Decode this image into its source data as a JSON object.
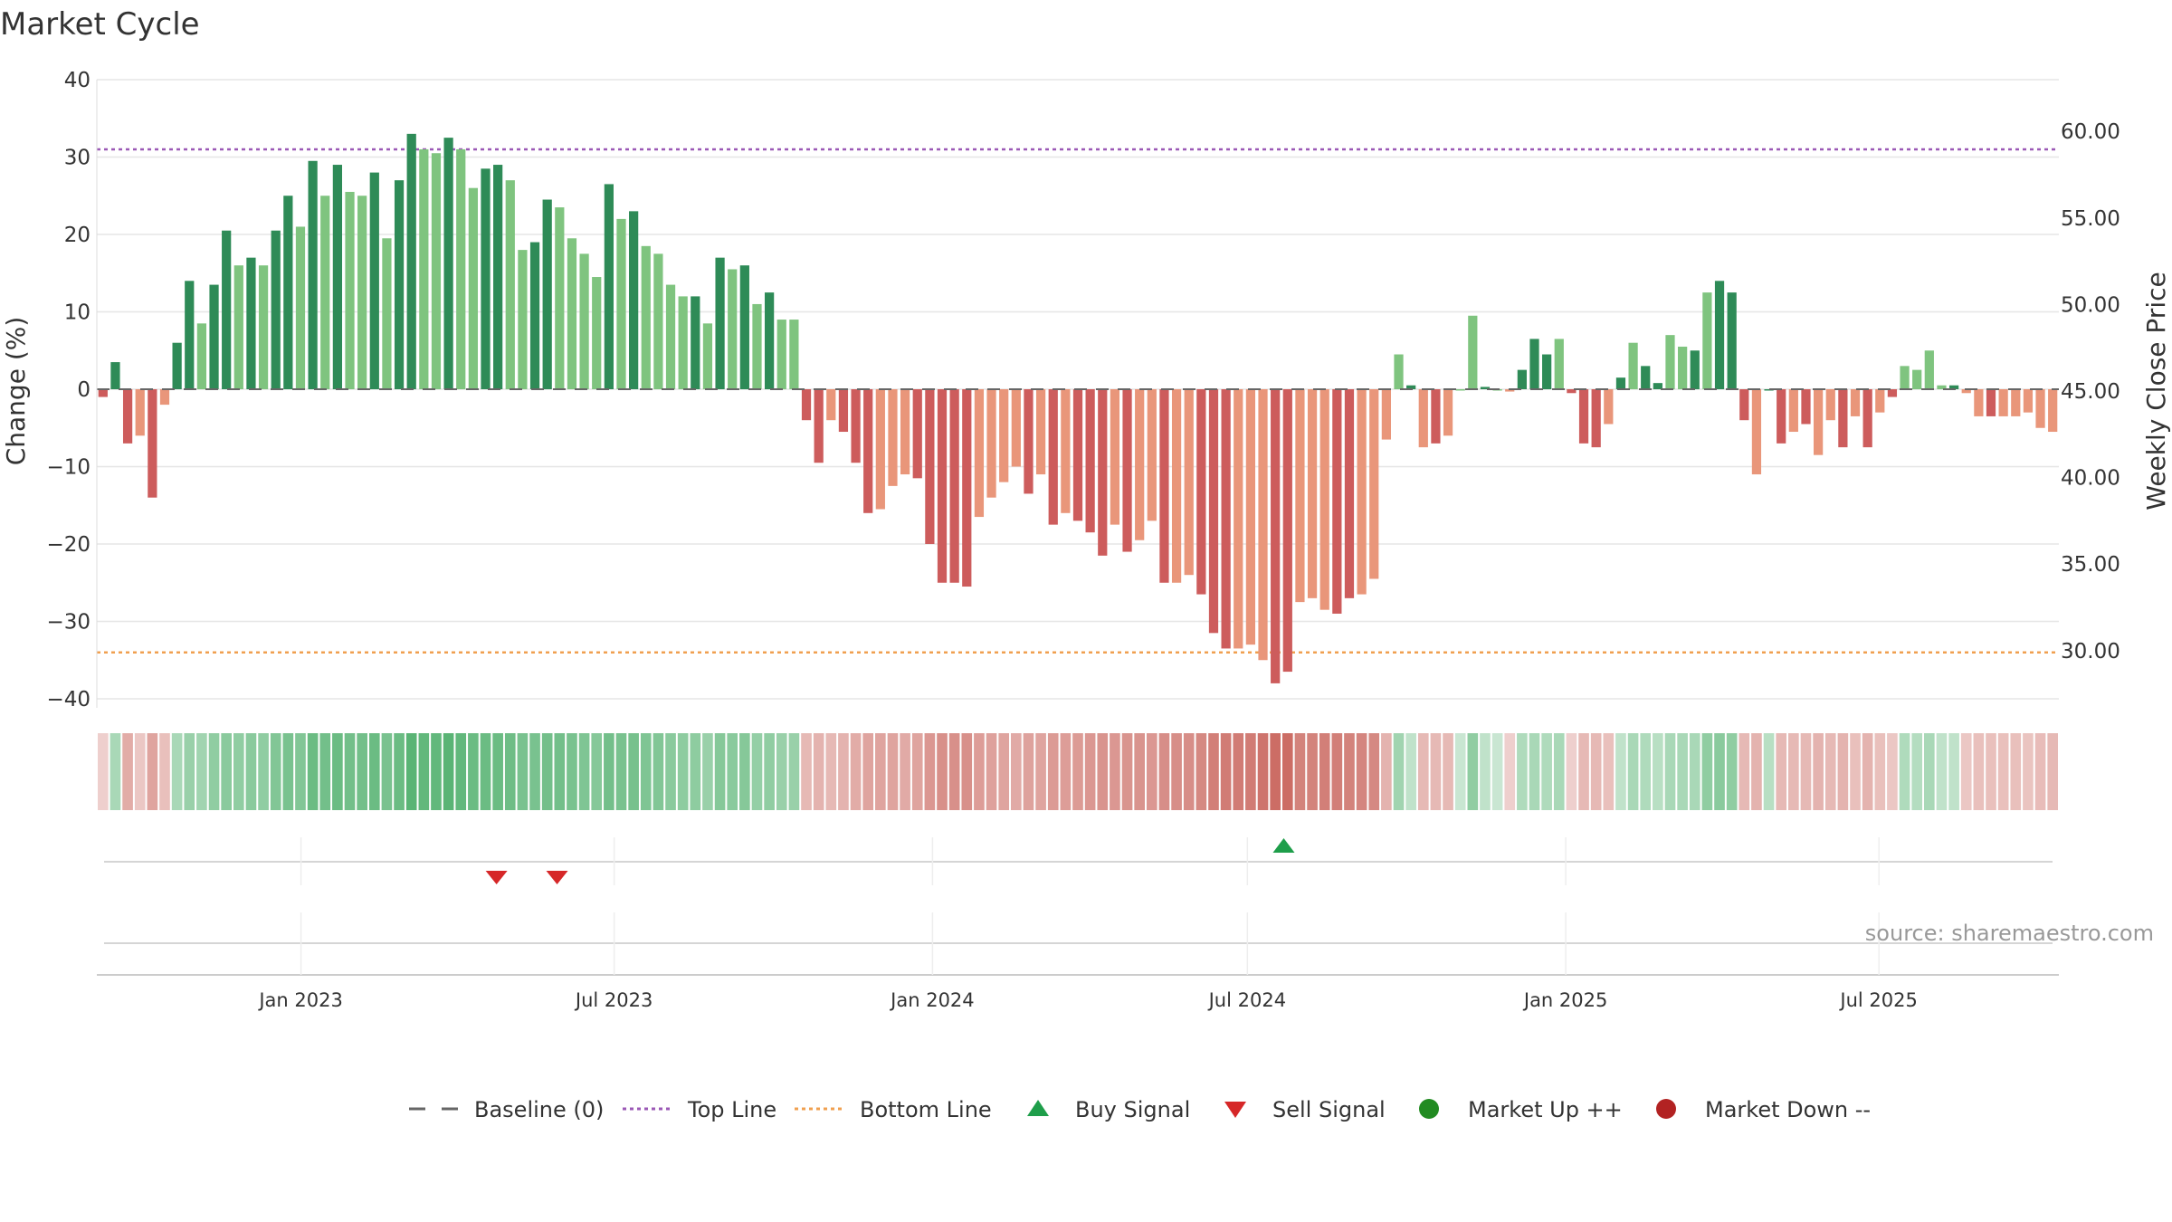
{
  "title": "Market Cycle",
  "source_text": "source: sharemaestro.com",
  "colors": {
    "strong_up": "#2e8b57",
    "weak_up": "#7fc47f",
    "strong_down": "#cd5c5c",
    "weak_down": "#e9967a",
    "top_line": "#9b59b6",
    "bottom_line": "#f0a050",
    "baseline": "#666666",
    "buy": "#1e9e4a",
    "sell": "#d62728",
    "market_up": "#228b22",
    "market_down": "#b22222"
  },
  "legend": [
    {
      "label": "Baseline (0)",
      "icon": "dash"
    },
    {
      "label": "Top Line",
      "icon": "dot-purple"
    },
    {
      "label": "Bottom Line",
      "icon": "dot-orange"
    },
    {
      "label": "Buy Signal",
      "icon": "triangle-up"
    },
    {
      "label": "Sell Signal",
      "icon": "triangle-down"
    },
    {
      "label": "Market Up ++",
      "icon": "circle-green"
    },
    {
      "label": "Market Down --",
      "icon": "circle-red"
    }
  ],
  "chart_data": {
    "type": "bar",
    "title": "Market Cycle",
    "ylabel": "Change (%)",
    "y2label": "Weekly Close Price",
    "ylim": [
      -40,
      40
    ],
    "yticks": [
      40,
      30,
      20,
      10,
      0,
      -10,
      -20,
      -30,
      -40
    ],
    "ytick_labels": [
      "40",
      "30",
      "20",
      "10",
      "0",
      "−10",
      "−20",
      "−30",
      "−40"
    ],
    "y2ticks": [
      60,
      55,
      50,
      45,
      40,
      35,
      30
    ],
    "y2tick_labels": [
      "60.00",
      "55.00",
      "50.00",
      "45.00",
      "40.00",
      "35.00",
      "30.00"
    ],
    "x_start": "2022-09-05",
    "x_end": "2025-10-13",
    "xtick_labels": [
      "Jan 2023",
      "Jul 2023",
      "Jan 2024",
      "Jul 2024",
      "Jan 2025",
      "Jul 2025"
    ],
    "xtick_dates": [
      "2023-01-01",
      "2023-07-01",
      "2024-01-01",
      "2024-07-01",
      "2025-01-01",
      "2025-07-01"
    ],
    "top_line": 31,
    "bottom_line": -34,
    "series": [
      {
        "name": "Change (%)",
        "values": [
          -1,
          3.5,
          -7,
          -6,
          -14,
          -2,
          6,
          14,
          8.5,
          13.5,
          20.5,
          16,
          17,
          16,
          20.5,
          25,
          21,
          29.5,
          25,
          29,
          25.5,
          25,
          28,
          19.5,
          27,
          33,
          31,
          30.5,
          32.5,
          31,
          26,
          28.5,
          29,
          27,
          18,
          19,
          24.5,
          23.5,
          19.5,
          17.5,
          14.5,
          26.5,
          22,
          23,
          18.5,
          17.5,
          13.5,
          12,
          12,
          8.5,
          17,
          15.5,
          16,
          11,
          12.5,
          9,
          9,
          -4,
          -9.5,
          -4,
          -5.5,
          -9.5,
          -16,
          -15.5,
          -12.5,
          -11,
          -11.5,
          -20,
          -25,
          -25,
          -25.5,
          -16.5,
          -14,
          -12,
          -10,
          -13.5,
          -11,
          -17.5,
          -16,
          -17,
          -18.5,
          -21.5,
          -17.5,
          -21,
          -19.5,
          -17,
          -25,
          -25,
          -24,
          -26.5,
          -31.5,
          -33.5,
          -33.5,
          -33,
          -35,
          -38,
          -36.5,
          -27.5,
          -27,
          -28.5,
          -29,
          -27,
          -26.5,
          -24.5,
          -6.5,
          4.5,
          0.5,
          -7.5,
          -7,
          -6,
          0,
          9.5,
          0.3,
          0,
          -0.3,
          2.5,
          6.5,
          4.5,
          6.5,
          -0.5,
          -7,
          -7.5,
          -4.5,
          1.5,
          6,
          3,
          0.8,
          7,
          5.5,
          5,
          12.5,
          14,
          12.5,
          -4,
          -11,
          0,
          -7,
          -5.5,
          -4.5,
          -8.5,
          -4,
          -7.5,
          -3.5,
          -7.5,
          -3,
          -1,
          3,
          2.5,
          5,
          0.5,
          0.5,
          -0.5,
          -3.5,
          -3.5,
          -3.5,
          -3.5,
          -3,
          -5,
          -5.5
        ],
        "strength": [
          1,
          1,
          1,
          0,
          1,
          0,
          1,
          1,
          0,
          1,
          1,
          0,
          1,
          0,
          1,
          1,
          0,
          1,
          0,
          1,
          0,
          0,
          1,
          0,
          1,
          1,
          0,
          0,
          1,
          0,
          0,
          1,
          1,
          0,
          0,
          1,
          1,
          0,
          0,
          0,
          0,
          1,
          0,
          1,
          0,
          0,
          0,
          0,
          1,
          0,
          1,
          0,
          1,
          0,
          1,
          0,
          0,
          1,
          1,
          0,
          1,
          1,
          1,
          0,
          0,
          0,
          1,
          1,
          1,
          1,
          1,
          0,
          0,
          0,
          0,
          1,
          0,
          1,
          0,
          1,
          1,
          1,
          0,
          1,
          0,
          0,
          1,
          0,
          0,
          1,
          1,
          1,
          0,
          0,
          0,
          1,
          1,
          0,
          0,
          0,
          1,
          1,
          0,
          0,
          0,
          0,
          1,
          0,
          1,
          0,
          0,
          0,
          1,
          0,
          0,
          1,
          1,
          1,
          0,
          1,
          1,
          1,
          0,
          1,
          0,
          1,
          1,
          0,
          0,
          1,
          0,
          1,
          1,
          1,
          0,
          1,
          1,
          0,
          1,
          0,
          0,
          1,
          0,
          1,
          0,
          1,
          0,
          0,
          0,
          0,
          1,
          0,
          0,
          1,
          0,
          0,
          0,
          0,
          0,
          1,
          1
        ]
      }
    ],
    "heat_strip": [
      0.15,
      0.35,
      0.4,
      0.2,
      0.45,
      0.25,
      0.35,
      0.45,
      0.4,
      0.5,
      0.55,
      0.5,
      0.55,
      0.5,
      0.6,
      0.65,
      0.6,
      0.75,
      0.7,
      0.75,
      0.7,
      0.7,
      0.75,
      0.65,
      0.75,
      0.85,
      0.8,
      0.8,
      0.85,
      0.8,
      0.75,
      0.75,
      0.75,
      0.72,
      0.65,
      0.65,
      0.7,
      0.7,
      0.65,
      0.62,
      0.58,
      0.7,
      0.65,
      0.67,
      0.62,
      0.6,
      0.55,
      0.52,
      0.52,
      0.45,
      0.58,
      0.55,
      0.57,
      0.48,
      0.5,
      0.45,
      0.45,
      0.3,
      0.35,
      0.3,
      0.35,
      0.4,
      0.45,
      0.45,
      0.45,
      0.42,
      0.45,
      0.55,
      0.6,
      0.6,
      0.6,
      0.5,
      0.48,
      0.45,
      0.42,
      0.47,
      0.45,
      0.52,
      0.5,
      0.52,
      0.55,
      0.58,
      0.55,
      0.58,
      0.57,
      0.55,
      0.62,
      0.62,
      0.62,
      0.65,
      0.72,
      0.75,
      0.75,
      0.75,
      0.8,
      0.85,
      0.85,
      0.7,
      0.7,
      0.72,
      0.72,
      0.7,
      0.68,
      0.65,
      0.35,
      0.4,
      0.2,
      0.3,
      0.3,
      0.3,
      0.15,
      0.5,
      0.2,
      0.15,
      0.15,
      0.3,
      0.35,
      0.3,
      0.35,
      0.15,
      0.3,
      0.3,
      0.25,
      0.2,
      0.35,
      0.3,
      0.25,
      0.35,
      0.35,
      0.35,
      0.5,
      0.55,
      0.5,
      0.3,
      0.35,
      0.25,
      0.3,
      0.3,
      0.3,
      0.35,
      0.3,
      0.35,
      0.25,
      0.35,
      0.25,
      0.2,
      0.3,
      0.28,
      0.35,
      0.2,
      0.2,
      0.2,
      0.25,
      0.25,
      0.25,
      0.25,
      0.22,
      0.28,
      0.3
    ],
    "signals": [
      {
        "type": "sell",
        "date": "2023-04-24"
      },
      {
        "type": "sell",
        "date": "2023-05-29"
      },
      {
        "type": "buy",
        "date": "2024-07-22"
      }
    ],
    "legend_position": "bottom"
  }
}
